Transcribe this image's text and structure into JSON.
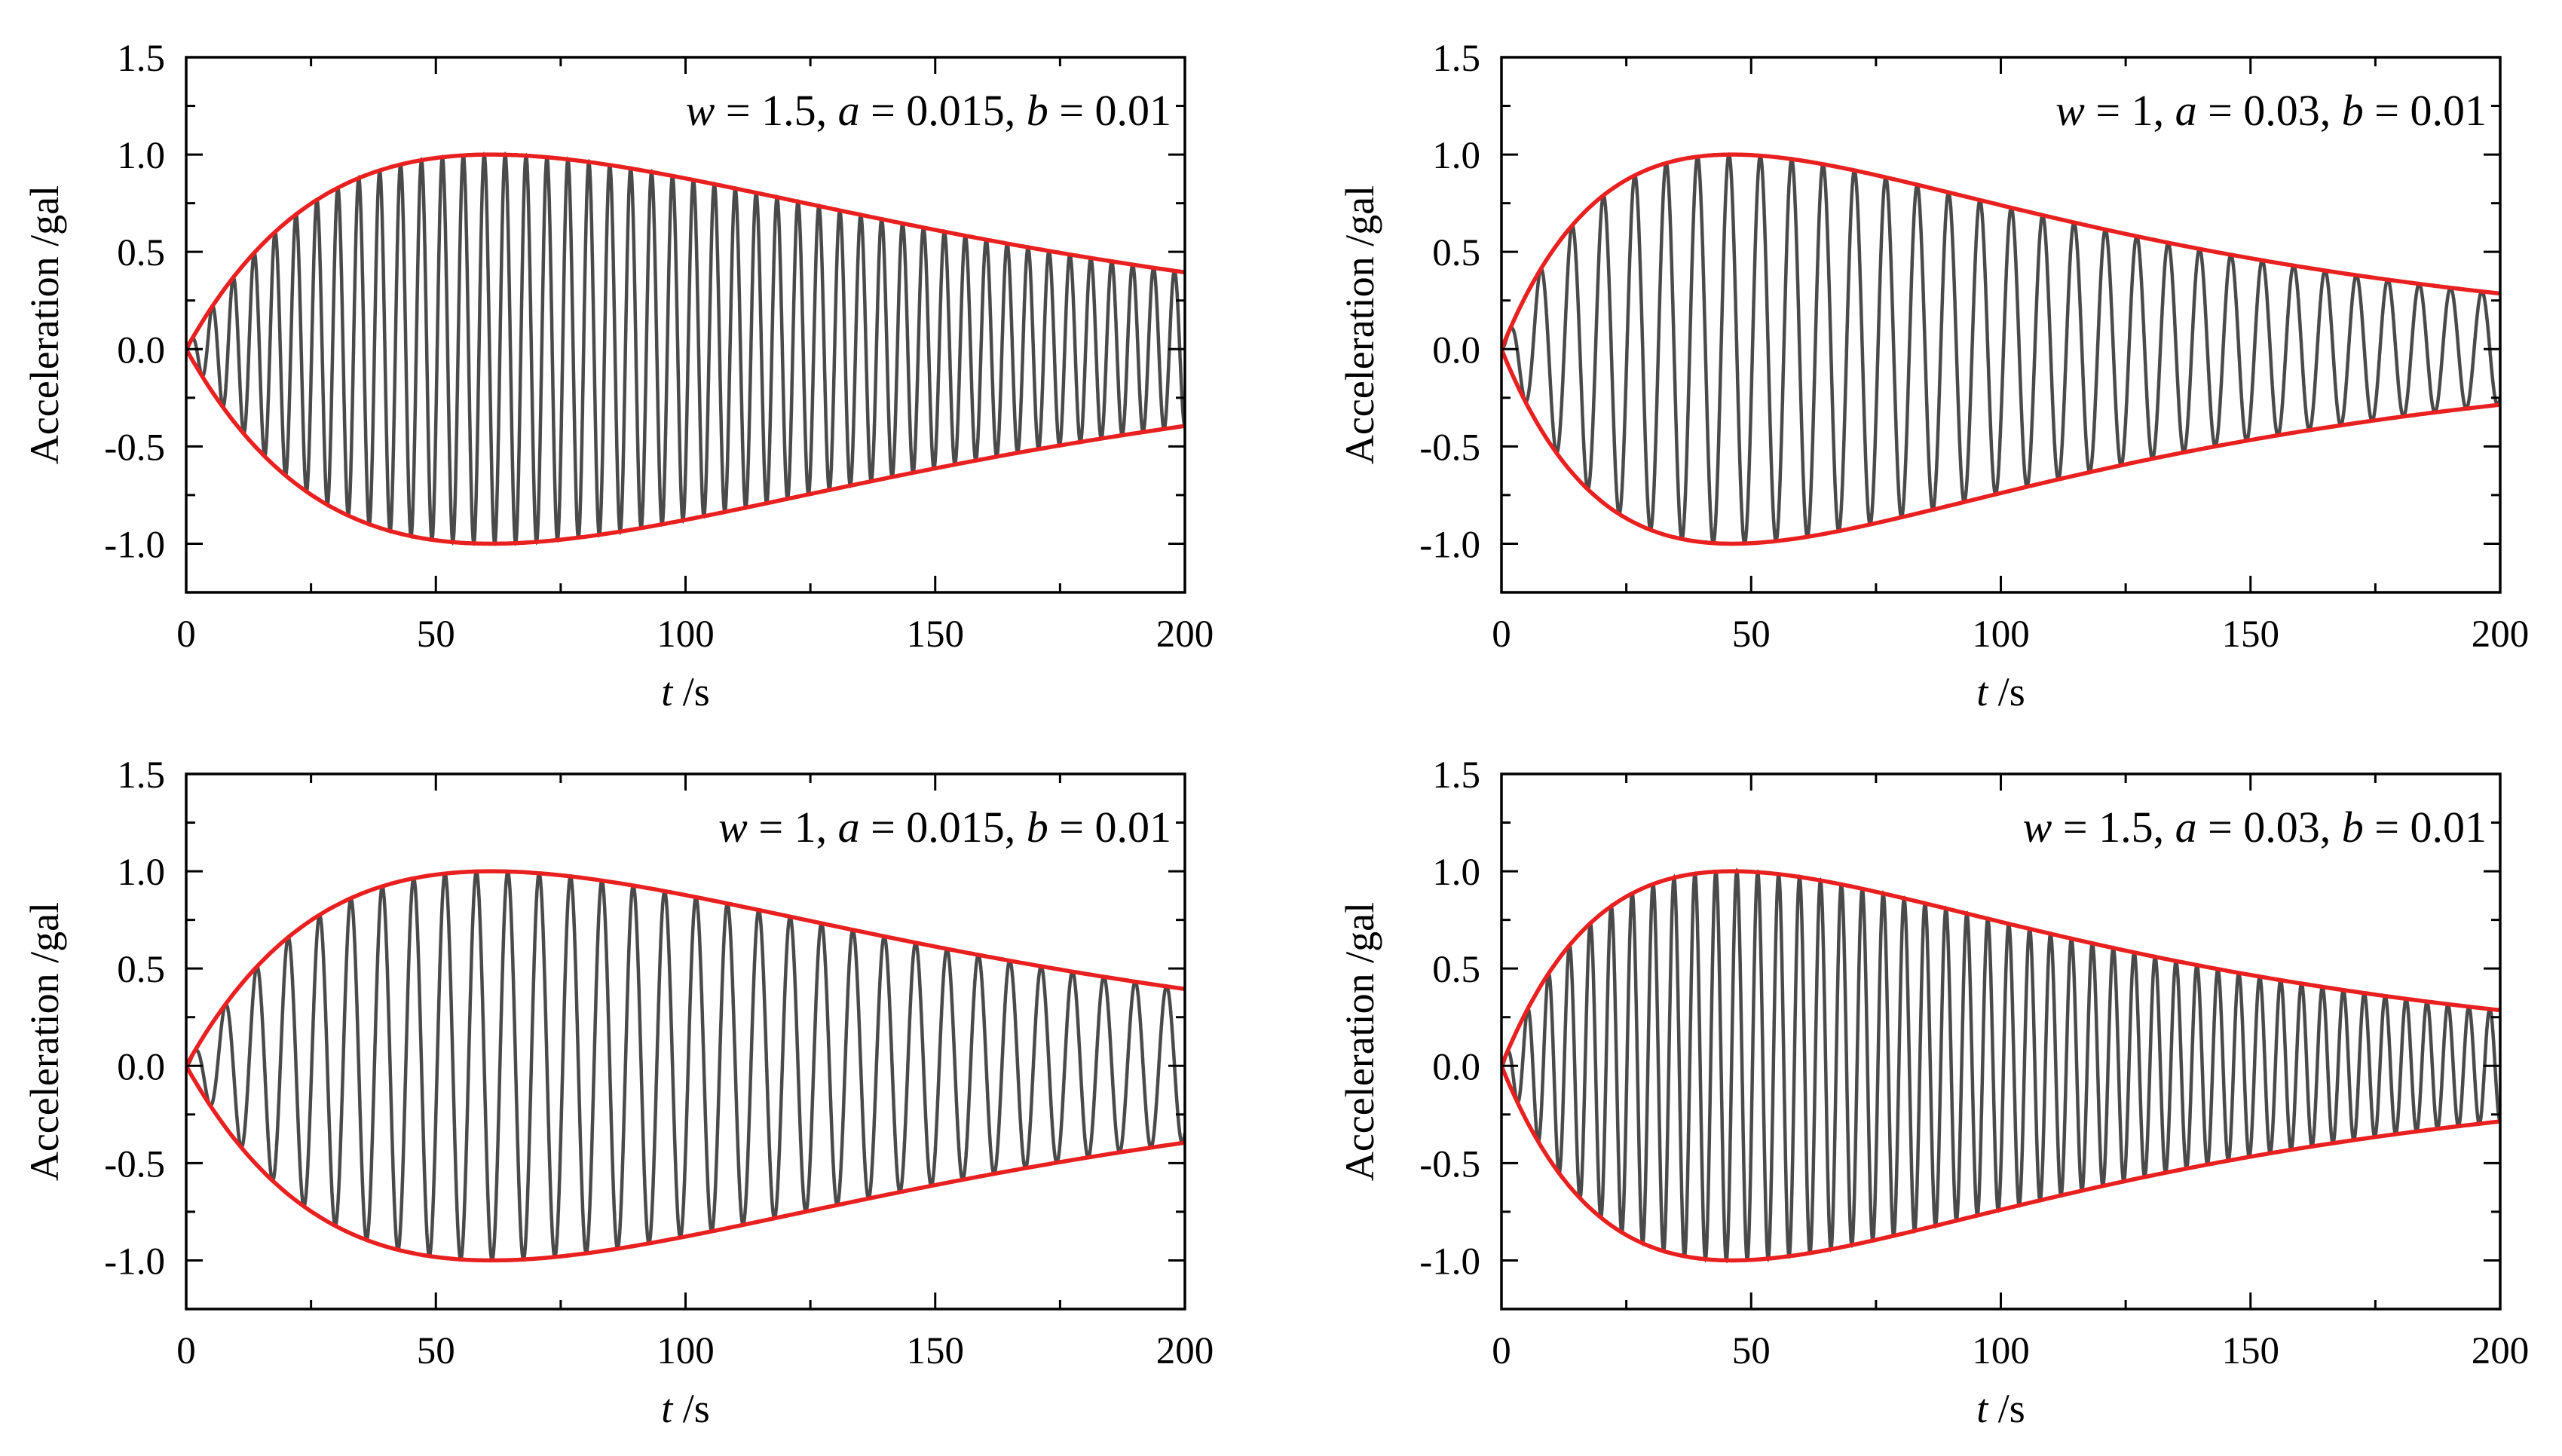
{
  "chart_data": [
    {
      "type": "line",
      "annotation": {
        "w": "1.5",
        "a": "0.015",
        "b": "0.01"
      },
      "params": {
        "w": 1.5,
        "a": 0.015,
        "b": 0.01
      },
      "xlabel": {
        "var": "t",
        "unit": "/s"
      },
      "ylabel": "Acceleration /gal",
      "xlim": [
        0,
        200
      ],
      "ylim": [
        -1.25,
        1.5
      ],
      "xticks": [
        "0",
        "50",
        "100",
        "150",
        "200"
      ],
      "yticks": [
        "1.5",
        "1.0",
        "0.5",
        "0.0",
        "-0.5",
        "-1.0"
      ],
      "series": [
        {
          "name": "acceleration",
          "color": "#4a4a4a",
          "t_range": [
            0,
            200
          ],
          "peak": 1.0
        },
        {
          "name": "upper envelope",
          "color": "#e8201f",
          "t_range": [
            0,
            200
          ],
          "peak": 1.0
        },
        {
          "name": "lower envelope",
          "color": "#e8201f",
          "t_range": [
            0,
            200
          ],
          "peak": -1.0
        }
      ]
    },
    {
      "type": "line",
      "annotation": {
        "w": "1",
        "a": "0.03",
        "b": "0.01"
      },
      "params": {
        "w": 1.0,
        "a": 0.03,
        "b": 0.01
      },
      "xlabel": {
        "var": "t",
        "unit": "/s"
      },
      "ylabel": "Acceleration /gal",
      "xlim": [
        0,
        200
      ],
      "ylim": [
        -1.25,
        1.5
      ],
      "xticks": [
        "0",
        "50",
        "100",
        "150",
        "200"
      ],
      "yticks": [
        "1.5",
        "1.0",
        "0.5",
        "0.0",
        "-0.5",
        "-1.0"
      ],
      "series": [
        {
          "name": "acceleration",
          "color": "#4a4a4a",
          "t_range": [
            0,
            200
          ],
          "peak": 1.0
        },
        {
          "name": "upper envelope",
          "color": "#e8201f",
          "t_range": [
            0,
            200
          ],
          "peak": 1.0
        },
        {
          "name": "lower envelope",
          "color": "#e8201f",
          "t_range": [
            0,
            200
          ],
          "peak": -1.0
        }
      ]
    },
    {
      "type": "line",
      "annotation": {
        "w": "1",
        "a": "0.015",
        "b": "0.01"
      },
      "params": {
        "w": 1.0,
        "a": 0.015,
        "b": 0.01
      },
      "xlabel": {
        "var": "t",
        "unit": "/s"
      },
      "ylabel": "Acceleration /gal",
      "xlim": [
        0,
        200
      ],
      "ylim": [
        -1.25,
        1.5
      ],
      "xticks": [
        "0",
        "50",
        "100",
        "150",
        "200"
      ],
      "yticks": [
        "1.5",
        "1.0",
        "0.5",
        "0.0",
        "-0.5",
        "-1.0"
      ],
      "series": [
        {
          "name": "acceleration",
          "color": "#4a4a4a",
          "t_range": [
            0,
            200
          ],
          "peak": 1.0
        },
        {
          "name": "upper envelope",
          "color": "#e8201f",
          "t_range": [
            0,
            200
          ],
          "peak": 1.0
        },
        {
          "name": "lower envelope",
          "color": "#e8201f",
          "t_range": [
            0,
            200
          ],
          "peak": -1.0
        }
      ]
    },
    {
      "type": "line",
      "annotation": {
        "w": "1.5",
        "a": "0.03",
        "b": "0.01"
      },
      "params": {
        "w": 1.5,
        "a": 0.03,
        "b": 0.01
      },
      "xlabel": {
        "var": "t",
        "unit": "/s"
      },
      "ylabel": "Acceleration /gal",
      "xlim": [
        0,
        200
      ],
      "ylim": [
        -1.25,
        1.5
      ],
      "xticks": [
        "0",
        "50",
        "100",
        "150",
        "200"
      ],
      "yticks": [
        "1.5",
        "1.0",
        "0.5",
        "0.0",
        "-0.5",
        "-1.0"
      ],
      "series": [
        {
          "name": "acceleration",
          "color": "#4a4a4a",
          "t_range": [
            0,
            200
          ],
          "peak": 1.0
        },
        {
          "name": "upper envelope",
          "color": "#e8201f",
          "t_range": [
            0,
            200
          ],
          "peak": 1.0
        },
        {
          "name": "lower envelope",
          "color": "#e8201f",
          "t_range": [
            0,
            200
          ],
          "peak": -1.0
        }
      ]
    }
  ]
}
